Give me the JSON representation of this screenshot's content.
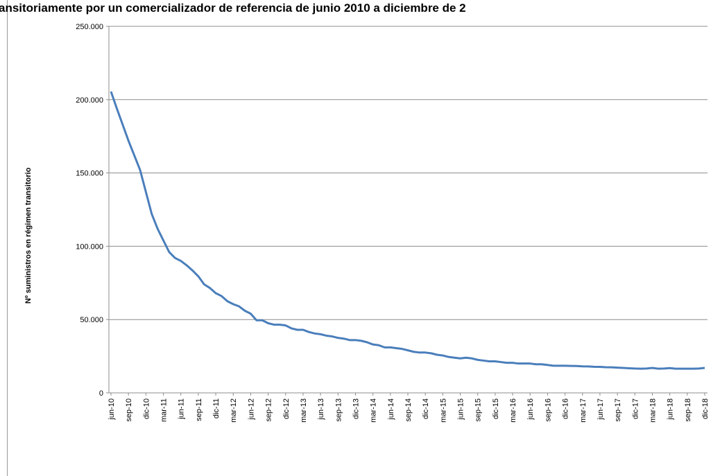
{
  "chart_data": {
    "type": "line",
    "title": "ansitoriamente por un comercializador de referencia de junio 2010 a diciembre de 2",
    "y_label": "Nº suministros  en régimen transitorio",
    "categories": [
      "jun-10",
      null,
      null,
      "sep-10",
      null,
      null,
      "dic-10",
      null,
      null,
      "mar-11",
      null,
      null,
      "jun-11",
      null,
      null,
      "sep-11",
      null,
      null,
      "dic-11",
      null,
      null,
      "mar-12",
      null,
      null,
      "jun-12",
      null,
      null,
      "sep-12",
      null,
      null,
      "dic-12",
      null,
      null,
      "mar-13",
      null,
      null,
      "jun-13",
      null,
      null,
      "sep-13",
      null,
      null,
      "dic-13",
      null,
      null,
      "mar-14",
      null,
      null,
      "jun-14",
      null,
      null,
      "sep-14",
      null,
      null,
      "dic-14",
      null,
      null,
      "mar-15",
      null,
      null,
      "jun-15",
      null,
      null,
      "sep-15",
      null,
      null,
      "dic-15",
      null,
      null,
      "mar-16",
      null,
      null,
      "jun-16",
      null,
      null,
      "sep-16",
      null,
      null,
      "dic-16",
      null,
      null,
      "mar-17",
      null,
      null,
      "jun-17",
      null,
      null,
      "sep-17",
      null,
      null,
      "dic-17",
      null,
      null,
      "mar-18",
      null,
      null,
      "jun-18",
      null,
      null,
      "sep-18",
      null,
      null,
      "dic-18"
    ],
    "series": [
      {
        "color": "#4a7ebb",
        "values": [
          205500,
          194000,
          183000,
          172000,
          162000,
          152000,
          137000,
          122000,
          112000,
          104000,
          96000,
          92000,
          90000,
          87000,
          83500,
          79500,
          74000,
          71500,
          68000,
          66000,
          62500,
          60500,
          59000,
          56000,
          54000,
          49500,
          49500,
          47500,
          46500,
          46500,
          46000,
          44000,
          43000,
          43000,
          41500,
          40500,
          40000,
          39000,
          38500,
          37500,
          37000,
          36000,
          36000,
          35500,
          34500,
          33000,
          32500,
          31000,
          31000,
          30500,
          30000,
          29000,
          28000,
          27500,
          27500,
          27000,
          26000,
          25500,
          24500,
          24000,
          23500,
          24000,
          23500,
          22500,
          22000,
          21500,
          21500,
          21000,
          20500,
          20500,
          20000,
          20000,
          20000,
          19500,
          19500,
          19000,
          18500,
          18500,
          18500,
          18400,
          18300,
          18100,
          18000,
          17800,
          17700,
          17500,
          17400,
          17200,
          17000,
          16800,
          16600,
          16500,
          16600,
          17000,
          16500,
          16600,
          16900,
          16500,
          16500,
          16500,
          16500,
          16600,
          17000
        ]
      }
    ],
    "ylim": [
      0,
      250000
    ],
    "yticks": [
      0,
      {
        "value": 50000,
        "label": "50.000"
      },
      {
        "value": 100000,
        "label": "100.000"
      },
      {
        "value": 150000,
        "label": "150.000"
      },
      {
        "value": 200000,
        "label": "200.000"
      },
      {
        "value": 250000,
        "label": "250.000"
      }
    ],
    "grid": true
  }
}
